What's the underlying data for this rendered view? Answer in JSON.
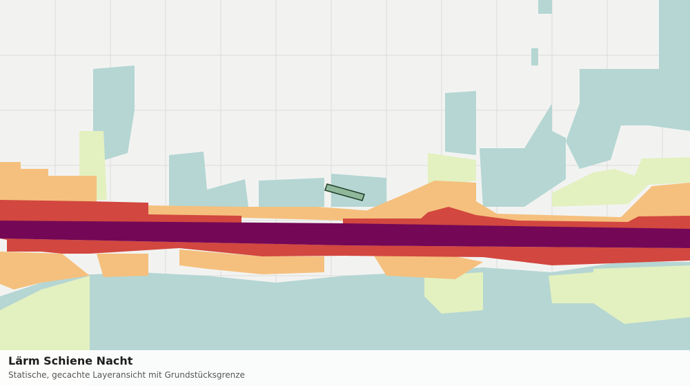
{
  "header": {
    "title": "Lärm Schiene Nacht",
    "subtitle": "Statische, gecachte Layeransicht mit Grundstücksgrenze"
  }
}
